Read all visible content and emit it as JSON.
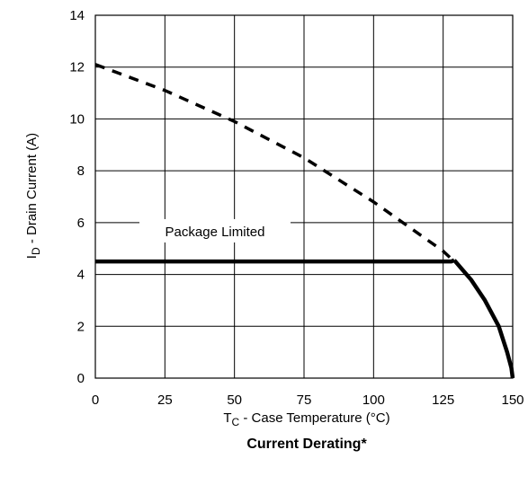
{
  "chart_data": {
    "type": "line",
    "title": "Current Derating*",
    "xlabel": {
      "main": "T",
      "sub": "C",
      "rest": " - Case Temperature (°C)"
    },
    "ylabel": {
      "main": "I",
      "sub": "D",
      "rest": " - Drain Current (A)"
    },
    "xlim": [
      0,
      150
    ],
    "ylim": [
      0,
      14
    ],
    "x_ticks": [
      0,
      25,
      50,
      75,
      100,
      125,
      150
    ],
    "y_ticks": [
      0,
      2,
      4,
      6,
      8,
      10,
      12,
      14
    ],
    "grid": true,
    "series": [
      {
        "style": "dashed",
        "x": [
          0,
          25,
          50,
          75,
          100,
          125,
          129
        ],
        "y": [
          12.1,
          11.1,
          9.9,
          8.5,
          6.8,
          4.9,
          4.5
        ]
      },
      {
        "name": "Package Limited",
        "style": "solid-thick",
        "x": [
          0,
          128,
          129
        ],
        "y": [
          4.5,
          4.5,
          4.55
        ]
      },
      {
        "style": "solid-thick",
        "x": [
          129,
          135,
          140,
          145,
          148,
          149.5,
          150
        ],
        "y": [
          4.55,
          3.8,
          3.0,
          2.0,
          1.0,
          0.4,
          0
        ]
      }
    ],
    "annotations": [
      {
        "text": "Package Limited",
        "x": 43,
        "y": 5.65
      }
    ]
  }
}
